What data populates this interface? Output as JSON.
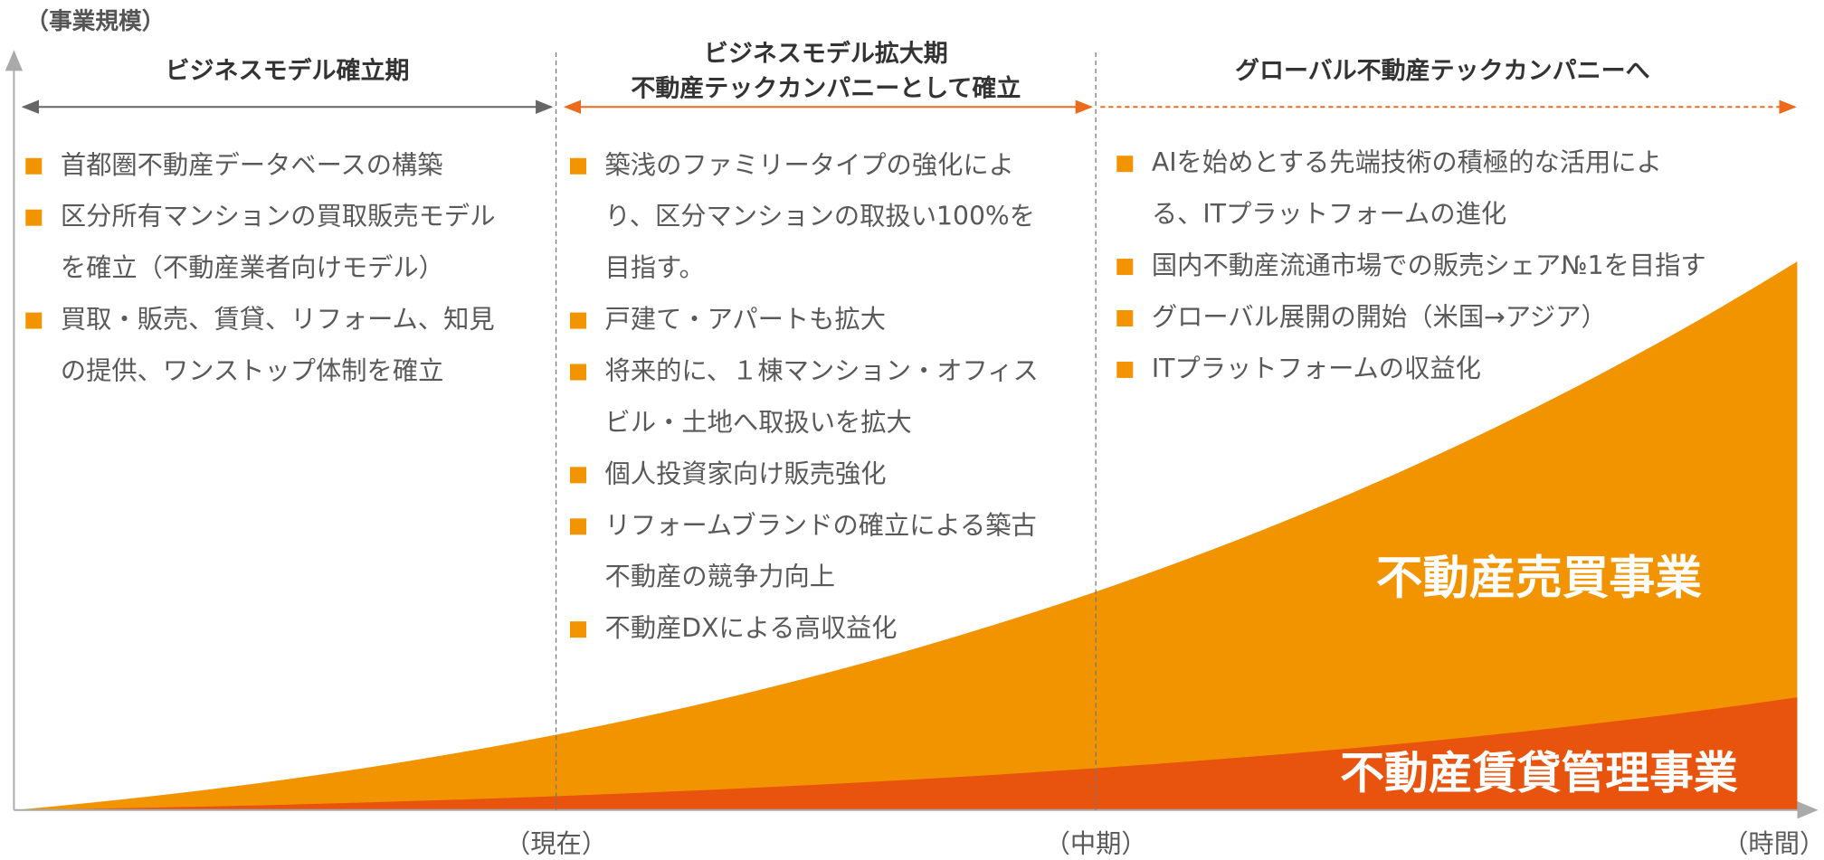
{
  "axis": {
    "y_label": "（事業規模）",
    "x_labels": [
      "（現在）",
      "（中期）",
      "（時間）"
    ]
  },
  "phases": [
    {
      "title": [
        "ビジネスモデル確立期"
      ],
      "bullets": [
        [
          "首都圏不動産データベースの構築"
        ],
        [
          "区分所有マンションの買取販売モデル",
          "を確立（不動産業者向けモデル）"
        ],
        [
          "買取・販売、賃貸、リフォーム、知見",
          "の提供、ワンストップ体制を確立"
        ]
      ]
    },
    {
      "title": [
        "ビジネスモデル拡大期",
        "不動産テックカンパニーとして確立"
      ],
      "bullets": [
        [
          "築浅のファミリータイプの強化によ",
          "り、区分マンションの取扱い100%を",
          "目指す。"
        ],
        [
          "戸建て・アパートも拡大"
        ],
        [
          "将来的に、１棟マンション・オフィス",
          "ビル・土地へ取扱いを拡大"
        ],
        [
          "個人投資家向け販売強化"
        ],
        [
          "リフォームブランドの確立による築古",
          "不動産の競争力向上"
        ],
        [
          "不動産DXによる高収益化"
        ]
      ]
    },
    {
      "title": [
        "グローバル不動産テックカンパニーへ"
      ],
      "bullets": [
        [
          "AIを始めとする先端技術の積極的な活用によ",
          "る、ITプラットフォームの進化"
        ],
        [
          "国内不動産流通市場での販売シェア№1を目指す"
        ],
        [
          "グローバル展開の開始（米国→アジア）"
        ],
        [
          "ITプラットフォームの収益化"
        ]
      ]
    }
  ],
  "areas": [
    "不動産売買事業",
    "不動産賃貸管理事業"
  ]
}
